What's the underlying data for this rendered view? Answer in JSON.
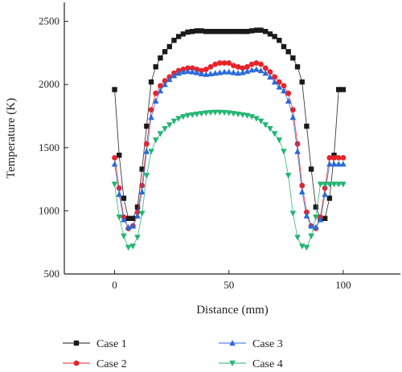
{
  "chart_data": {
    "type": "line",
    "title": "",
    "xlabel": "Distance (mm)",
    "ylabel": "Temperature (K)",
    "xlim": [
      -22,
      125
    ],
    "ylim": [
      500,
      2650
    ],
    "xticks": [
      0,
      50,
      100
    ],
    "yticks": [
      500,
      1000,
      1500,
      2000,
      2500
    ],
    "x": [
      0,
      2,
      4,
      6,
      8,
      10,
      12,
      14,
      16,
      18,
      20,
      22,
      24,
      26,
      28,
      30,
      32,
      34,
      36,
      38,
      40,
      42,
      44,
      46,
      48,
      50,
      52,
      54,
      56,
      58,
      60,
      62,
      64,
      66,
      68,
      70,
      72,
      74,
      76,
      78,
      80,
      82,
      84,
      86,
      88,
      90,
      92,
      94,
      96,
      98,
      100
    ],
    "series": [
      {
        "name": "Case 1",
        "color": "#1a1a1a",
        "marker": "square",
        "values": [
          1960,
          1440,
          1100,
          940,
          940,
          1030,
          1330,
          1670,
          2020,
          2140,
          2210,
          2260,
          2300,
          2350,
          2380,
          2400,
          2415,
          2420,
          2425,
          2425,
          2420,
          2420,
          2420,
          2420,
          2420,
          2420,
          2420,
          2420,
          2420,
          2420,
          2425,
          2430,
          2430,
          2420,
          2400,
          2380,
          2350,
          2300,
          2260,
          2210,
          2140,
          2020,
          1670,
          1330,
          1030,
          940,
          940,
          1100,
          1440,
          1960,
          1960
        ]
      },
      {
        "name": "Case 2",
        "color": "#e8232a",
        "marker": "circle",
        "values": [
          1420,
          1180,
          950,
          860,
          880,
          990,
          1200,
          1530,
          1800,
          1930,
          1990,
          2030,
          2060,
          2090,
          2110,
          2120,
          2130,
          2130,
          2120,
          2110,
          2120,
          2140,
          2160,
          2170,
          2170,
          2170,
          2150,
          2140,
          2130,
          2140,
          2160,
          2170,
          2160,
          2130,
          2100,
          2060,
          2020,
          1990,
          1930,
          1800,
          1530,
          1200,
          990,
          880,
          860,
          950,
          1180,
          1420,
          1420,
          1420,
          1420
        ]
      },
      {
        "name": "Case 3",
        "color": "#2a6ad8",
        "marker": "triangle-up",
        "values": [
          1370,
          1130,
          930,
          870,
          880,
          960,
          1150,
          1470,
          1740,
          1870,
          1950,
          2000,
          2040,
          2070,
          2090,
          2100,
          2105,
          2100,
          2095,
          2085,
          2080,
          2085,
          2090,
          2095,
          2100,
          2100,
          2095,
          2090,
          2095,
          2105,
          2115,
          2120,
          2110,
          2090,
          2060,
          2020,
          1980,
          1950,
          1870,
          1740,
          1470,
          1150,
          960,
          880,
          870,
          930,
          1130,
          1370,
          1370,
          1370,
          1370
        ]
      },
      {
        "name": "Case 4",
        "color": "#22b573",
        "marker": "triangle-down",
        "values": [
          1210,
          950,
          800,
          710,
          720,
          790,
          980,
          1280,
          1470,
          1560,
          1610,
          1650,
          1680,
          1710,
          1730,
          1745,
          1755,
          1760,
          1765,
          1770,
          1775,
          1778,
          1780,
          1780,
          1778,
          1775,
          1770,
          1765,
          1760,
          1755,
          1745,
          1730,
          1710,
          1680,
          1650,
          1610,
          1560,
          1470,
          1280,
          980,
          790,
          720,
          710,
          800,
          950,
          1210,
          1210,
          1210,
          1210,
          1210,
          1210
        ]
      }
    ],
    "legend": {
      "position": "bottom"
    },
    "grid": false
  }
}
